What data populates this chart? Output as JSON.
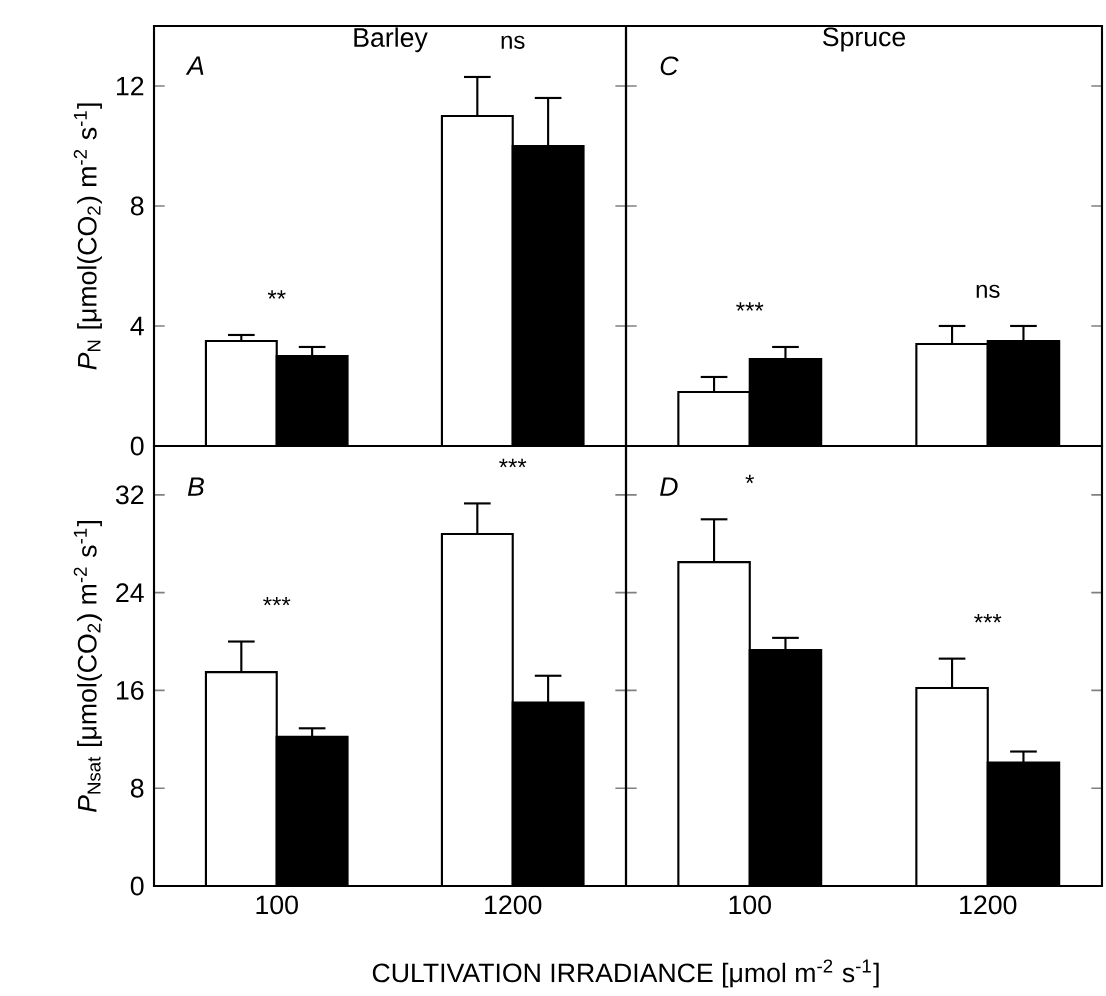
{
  "chart_data": [
    {
      "type": "bar",
      "title": "Barley",
      "ylabel": "*P*$_{N}$ [μmol(CO$_{2}$) m$^{-2}$ s$^{-1}$]",
      "categories": [
        "100",
        "1200"
      ],
      "ylim": [
        0,
        14
      ],
      "yticks": [
        0,
        4,
        8,
        12
      ],
      "tick_labels": "y",
      "series": [
        {
          "color": "#ffffff",
          "values": [
            3.5,
            11.0
          ],
          "errors": [
            0.2,
            1.3
          ]
        },
        {
          "color": "#000000",
          "values": [
            3.0,
            10.0
          ],
          "errors": [
            0.3,
            1.6
          ]
        }
      ],
      "annotations": [
        "A",
        "**",
        "ns"
      ]
    },
    {
      "type": "bar",
      "title": "Spruce",
      "categories": [
        "100",
        "1200"
      ],
      "ylim": [
        0,
        14
      ],
      "yticks": [
        {
          "value": 0,
          "label": null
        },
        {
          "value": 4,
          "label": null
        },
        {
          "value": 8,
          "label": null
        },
        {
          "value": 12,
          "label": null
        }
      ],
      "tick_labels": false,
      "series": [
        {
          "color": "#ffffff",
          "values": [
            1.8,
            3.4
          ],
          "errors": [
            0.5,
            0.6
          ]
        },
        {
          "color": "#000000",
          "values": [
            2.9,
            3.5
          ],
          "errors": [
            0.4,
            0.5
          ]
        }
      ],
      "annotations": [
        "C",
        "***",
        "ns"
      ]
    },
    {
      "type": "bar",
      "ylabel": "*P*$_{Nsat}$ [μmol(CO$_{2}$) m$^{-2}$ s$^{-1}$]",
      "xlabel": "CULTIVATION IRRADIANCE [μmol m$^{-2}$ s$^{-1}$]",
      "categories": [
        "100",
        "1200"
      ],
      "ylim": [
        0,
        36
      ],
      "yticks": [
        0,
        8,
        16,
        24,
        32
      ],
      "series": [
        {
          "color": "#ffffff",
          "values": [
            17.5,
            28.8
          ],
          "errors": [
            2.5,
            2.5
          ]
        },
        {
          "color": "#000000",
          "values": [
            12.2,
            15.0
          ],
          "errors": [
            0.7,
            2.2
          ]
        }
      ],
      "annotations": [
        "B",
        "***",
        "***"
      ]
    },
    {
      "type": "bar",
      "categories": [
        "100",
        "1200"
      ],
      "ylim": [
        0,
        36
      ],
      "yticks": [
        {
          "value": 0,
          "label": null
        },
        {
          "value": 8,
          "label": null
        },
        {
          "value": 16,
          "label": null
        },
        {
          "value": 24,
          "label": null
        },
        {
          "value": 32,
          "label": null
        }
      ],
      "tick_labels": "x",
      "series": [
        {
          "color": "#ffffff",
          "values": [
            26.5,
            16.2
          ],
          "errors": [
            3.5,
            2.4
          ]
        },
        {
          "color": "#000000",
          "values": [
            19.3,
            10.1
          ],
          "errors": [
            1.0,
            0.9
          ]
        }
      ],
      "annotations": [
        "D",
        "*",
        "***"
      ]
    }
  ]
}
